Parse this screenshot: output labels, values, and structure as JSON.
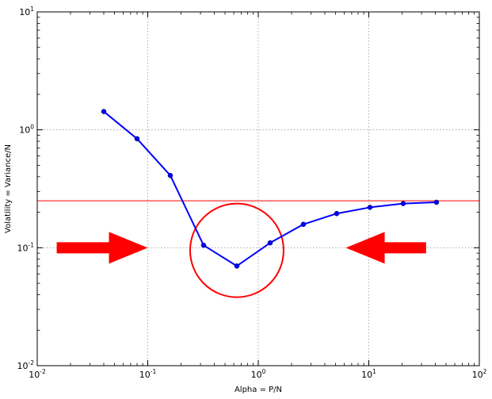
{
  "chart_data": {
    "type": "line",
    "xscale": "log",
    "yscale": "log",
    "xlim": [
      0.01,
      100
    ],
    "ylim": [
      0.01,
      10
    ],
    "xlabel": "Alpha = P/N",
    "ylabel": "Volatility = Variance/N",
    "grid": true,
    "x_ticks": [
      {
        "base": "10",
        "exp": "-2",
        "value": 0.01
      },
      {
        "base": "10",
        "exp": "-1",
        "value": 0.1
      },
      {
        "base": "10",
        "exp": "0",
        "value": 1
      },
      {
        "base": "10",
        "exp": "1",
        "value": 10
      },
      {
        "base": "10",
        "exp": "2",
        "value": 100
      }
    ],
    "y_ticks": [
      {
        "base": "10",
        "exp": "-2",
        "value": 0.01
      },
      {
        "base": "10",
        "exp": "-1",
        "value": 0.1
      },
      {
        "base": "10",
        "exp": "0",
        "value": 1
      },
      {
        "base": "10",
        "exp": "1",
        "value": 10
      }
    ],
    "series": [
      {
        "color": "#0000ff",
        "marker": "circle",
        "x": [
          0.04,
          0.08,
          0.16,
          0.32,
          0.64,
          1.28,
          2.56,
          5.12,
          10.24,
          20.48,
          40.96
        ],
        "y": [
          1.43,
          0.84,
          0.41,
          0.105,
          0.07,
          0.11,
          0.158,
          0.195,
          0.22,
          0.237,
          0.243
        ]
      }
    ],
    "hline": {
      "y": 0.25,
      "color": "#ff0000"
    },
    "annotations": {
      "circle": {
        "cx": 0.64,
        "cy": 0.095,
        "color": "#ff0000"
      },
      "arrows": [
        {
          "direction": "right",
          "from_x": 0.015,
          "to_x": 0.1,
          "y": 0.1,
          "color": "#ff0000"
        },
        {
          "direction": "left",
          "from_x": 33,
          "to_x": 6.2,
          "y": 0.1,
          "color": "#ff0000"
        }
      ]
    }
  }
}
